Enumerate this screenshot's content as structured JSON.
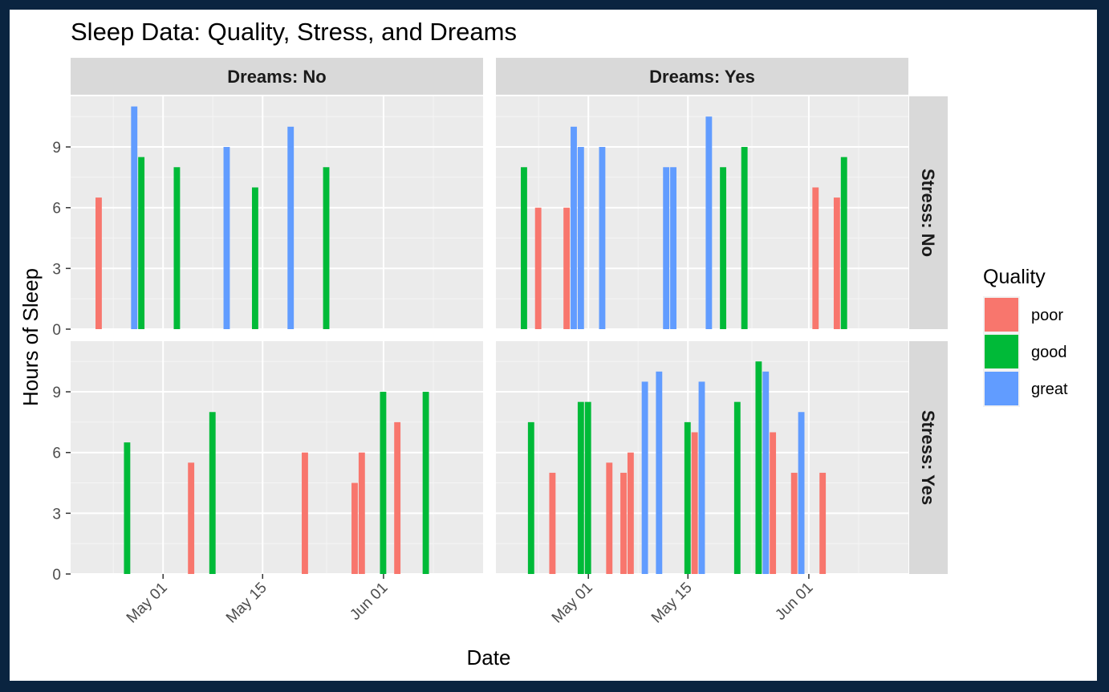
{
  "chart_data": {
    "type": "bar",
    "title": "Sleep Data: Quality, Stress, and Dreams",
    "xlabel": "Date",
    "ylabel": "Hours of Sleep",
    "xlim": [
      "2025-04-18",
      "2025-06-15"
    ],
    "ylim": [
      0,
      11.5
    ],
    "x_ticks": [
      {
        "date": "2025-05-01",
        "label": "May 01"
      },
      {
        "date": "2025-05-15",
        "label": "May 15"
      },
      {
        "date": "2025-06-01",
        "label": "Jun 01"
      }
    ],
    "y_ticks": [
      0,
      3,
      6,
      9
    ],
    "grid": true,
    "legend": {
      "title": "Quality",
      "position": "right",
      "items": [
        {
          "key": "poor",
          "label": "poor",
          "color": "#F8766D"
        },
        {
          "key": "good",
          "label": "good",
          "color": "#00BA38"
        },
        {
          "key": "great",
          "label": "great",
          "color": "#619CFF"
        }
      ]
    },
    "facet_columns": [
      "Dreams: No",
      "Dreams: Yes"
    ],
    "facet_rows": [
      "Stress: No",
      "Stress: Yes"
    ],
    "panels": [
      {
        "row": 0,
        "col": 0,
        "bars": [
          {
            "date": "2025-04-22",
            "hours": 6.5,
            "quality": "poor"
          },
          {
            "date": "2025-04-28",
            "hours": 8.5,
            "quality": "good"
          },
          {
            "date": "2025-04-27",
            "hours": 11.0,
            "quality": "great"
          },
          {
            "date": "2025-05-03",
            "hours": 8.0,
            "quality": "good"
          },
          {
            "date": "2025-05-10",
            "hours": 9.0,
            "quality": "great"
          },
          {
            "date": "2025-05-14",
            "hours": 7.0,
            "quality": "good"
          },
          {
            "date": "2025-05-19",
            "hours": 10.0,
            "quality": "great"
          },
          {
            "date": "2025-05-24",
            "hours": 8.0,
            "quality": "good"
          }
        ]
      },
      {
        "row": 0,
        "col": 1,
        "bars": [
          {
            "date": "2025-04-22",
            "hours": 8.0,
            "quality": "good"
          },
          {
            "date": "2025-04-24",
            "hours": 6.0,
            "quality": "poor"
          },
          {
            "date": "2025-04-28",
            "hours": 6.0,
            "quality": "poor"
          },
          {
            "date": "2025-04-29",
            "hours": 10.0,
            "quality": "great"
          },
          {
            "date": "2025-04-30",
            "hours": 9.0,
            "quality": "great"
          },
          {
            "date": "2025-05-03",
            "hours": 9.0,
            "quality": "great"
          },
          {
            "date": "2025-05-12",
            "hours": 8.0,
            "quality": "great"
          },
          {
            "date": "2025-05-13",
            "hours": 8.0,
            "quality": "great"
          },
          {
            "date": "2025-05-18",
            "hours": 10.5,
            "quality": "great"
          },
          {
            "date": "2025-05-20",
            "hours": 8.0,
            "quality": "good"
          },
          {
            "date": "2025-05-23",
            "hours": 9.0,
            "quality": "good"
          },
          {
            "date": "2025-06-02",
            "hours": 7.0,
            "quality": "poor"
          },
          {
            "date": "2025-06-05",
            "hours": 6.5,
            "quality": "poor"
          },
          {
            "date": "2025-06-06",
            "hours": 8.5,
            "quality": "good"
          }
        ]
      },
      {
        "row": 1,
        "col": 0,
        "bars": [
          {
            "date": "2025-04-26",
            "hours": 6.5,
            "quality": "good"
          },
          {
            "date": "2025-05-05",
            "hours": 5.5,
            "quality": "poor"
          },
          {
            "date": "2025-05-08",
            "hours": 8.0,
            "quality": "good"
          },
          {
            "date": "2025-05-21",
            "hours": 6.0,
            "quality": "poor"
          },
          {
            "date": "2025-05-28",
            "hours": 4.5,
            "quality": "poor"
          },
          {
            "date": "2025-05-29",
            "hours": 6.0,
            "quality": "poor"
          },
          {
            "date": "2025-06-01",
            "hours": 9.0,
            "quality": "good"
          },
          {
            "date": "2025-06-03",
            "hours": 7.5,
            "quality": "poor"
          },
          {
            "date": "2025-06-07",
            "hours": 9.0,
            "quality": "good"
          }
        ]
      },
      {
        "row": 1,
        "col": 1,
        "bars": [
          {
            "date": "2025-04-23",
            "hours": 7.5,
            "quality": "good"
          },
          {
            "date": "2025-04-26",
            "hours": 5.0,
            "quality": "poor"
          },
          {
            "date": "2025-04-30",
            "hours": 8.5,
            "quality": "good"
          },
          {
            "date": "2025-05-01",
            "hours": 8.5,
            "quality": "good"
          },
          {
            "date": "2025-05-04",
            "hours": 5.5,
            "quality": "poor"
          },
          {
            "date": "2025-05-06",
            "hours": 5.0,
            "quality": "poor"
          },
          {
            "date": "2025-05-07",
            "hours": 6.0,
            "quality": "poor"
          },
          {
            "date": "2025-05-09",
            "hours": 9.5,
            "quality": "great"
          },
          {
            "date": "2025-05-11",
            "hours": 10.0,
            "quality": "great"
          },
          {
            "date": "2025-05-15",
            "hours": 7.5,
            "quality": "good"
          },
          {
            "date": "2025-05-16",
            "hours": 7.0,
            "quality": "poor"
          },
          {
            "date": "2025-05-17",
            "hours": 9.5,
            "quality": "great"
          },
          {
            "date": "2025-05-22",
            "hours": 8.5,
            "quality": "good"
          },
          {
            "date": "2025-05-25",
            "hours": 10.5,
            "quality": "good"
          },
          {
            "date": "2025-05-26",
            "hours": 10.0,
            "quality": "great"
          },
          {
            "date": "2025-05-27",
            "hours": 7.0,
            "quality": "poor"
          },
          {
            "date": "2025-05-30",
            "hours": 5.0,
            "quality": "poor"
          },
          {
            "date": "2025-05-31",
            "hours": 8.0,
            "quality": "great"
          },
          {
            "date": "2025-06-03",
            "hours": 5.0,
            "quality": "poor"
          }
        ]
      }
    ]
  }
}
